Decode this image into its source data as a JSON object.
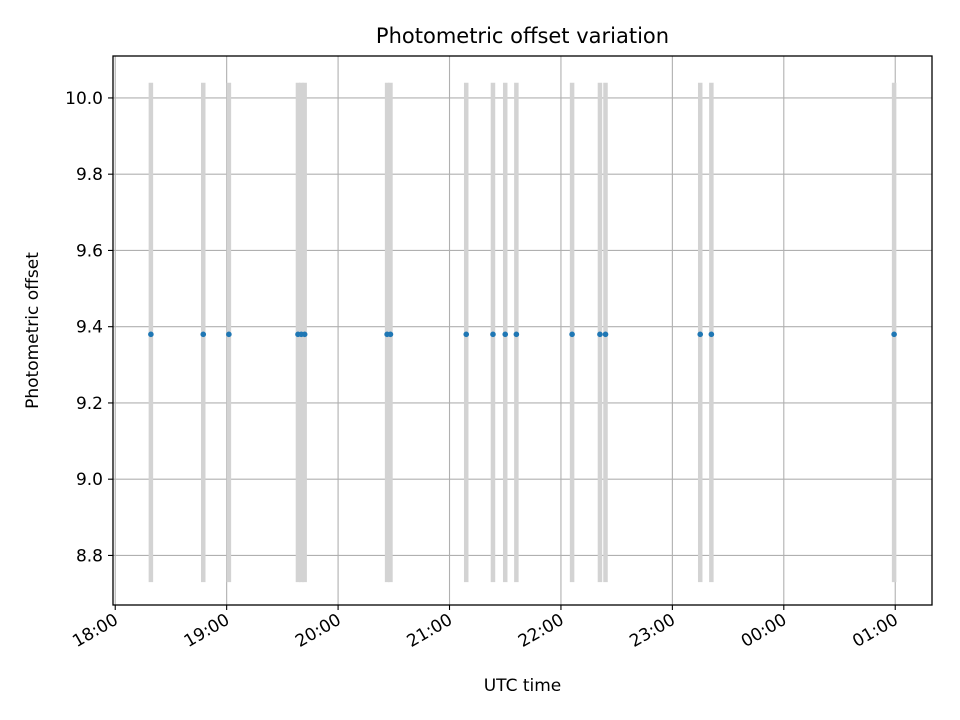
{
  "chart_data": {
    "type": "scatter",
    "title": "Photometric offset variation",
    "xlabel": "UTC time",
    "ylabel": "Photometric offset",
    "grid": true,
    "x_tick_labels": [
      "18:00",
      "19:00",
      "20:00",
      "21:00",
      "22:00",
      "23:00",
      "00:00",
      "01:00"
    ],
    "x_tick_hours": [
      18,
      19,
      20,
      21,
      22,
      23,
      24,
      25
    ],
    "xlim_hours": [
      17.98,
      25.33
    ],
    "y_tick_labels": [
      "8.8",
      "9.0",
      "9.2",
      "9.4",
      "9.6",
      "9.8",
      "10.0"
    ],
    "y_ticks": [
      8.8,
      9.0,
      9.2,
      9.4,
      9.6,
      9.8,
      10.0
    ],
    "ylim": [
      8.67,
      10.11
    ],
    "errorbar_range": [
      8.73,
      10.04
    ],
    "point_color": "#1f77b4",
    "errorbar_color": "#d3d3d3",
    "points": [
      {
        "time": "18:19",
        "hour": 18.32,
        "offset": 9.38
      },
      {
        "time": "18:47",
        "hour": 18.79,
        "offset": 9.38
      },
      {
        "time": "19:01",
        "hour": 19.02,
        "offset": 9.38
      },
      {
        "time": "19:38",
        "hour": 19.64,
        "offset": 9.38
      },
      {
        "time": "19:40",
        "hour": 19.67,
        "offset": 9.38
      },
      {
        "time": "19:42",
        "hour": 19.7,
        "offset": 9.38
      },
      {
        "time": "20:26",
        "hour": 20.44,
        "offset": 9.38
      },
      {
        "time": "20:28",
        "hour": 20.47,
        "offset": 9.38
      },
      {
        "time": "21:09",
        "hour": 21.15,
        "offset": 9.38
      },
      {
        "time": "21:23",
        "hour": 21.39,
        "offset": 9.38
      },
      {
        "time": "21:30",
        "hour": 21.5,
        "offset": 9.38
      },
      {
        "time": "21:36",
        "hour": 21.6,
        "offset": 9.38
      },
      {
        "time": "22:06",
        "hour": 22.1,
        "offset": 9.38
      },
      {
        "time": "22:21",
        "hour": 22.35,
        "offset": 9.38
      },
      {
        "time": "22:24",
        "hour": 22.4,
        "offset": 9.38
      },
      {
        "time": "23:15",
        "hour": 23.25,
        "offset": 9.38
      },
      {
        "time": "23:21",
        "hour": 23.35,
        "offset": 9.38
      },
      {
        "time": "00:59",
        "hour": 24.99,
        "offset": 9.38
      }
    ]
  }
}
